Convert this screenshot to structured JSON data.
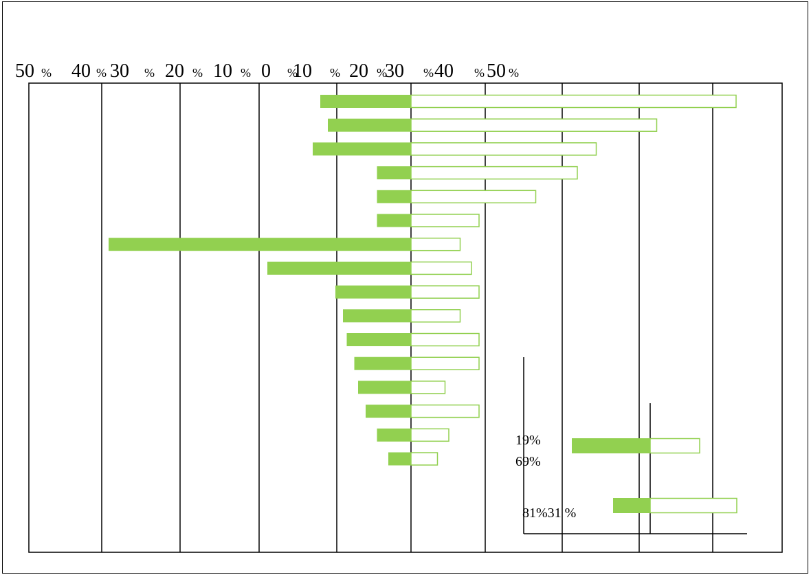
{
  "chart_data": {
    "type": "bar",
    "orientation": "horizontal",
    "stacking": "diverging",
    "grid": true,
    "legend": "none",
    "title": "",
    "xlabel": "",
    "ylabel": "",
    "xlim": [
      -50,
      50
    ],
    "x_tick_values": [
      -50,
      -40,
      -30,
      -20,
      -10,
      0,
      10,
      20,
      30,
      40,
      50
    ],
    "tick_number_labels": [
      "50",
      "40",
      "30",
      "20",
      "10",
      "0",
      "10",
      "20",
      "30",
      "40",
      "50"
    ],
    "tick_unit_label": "%",
    "colors": {
      "negative_fill": "#92D050",
      "positive_outline": "#92D050",
      "positive_fill": "#FFFFFF",
      "grid": "#000000"
    },
    "series": [
      {
        "values": [
          -12,
          -11,
          -13,
          -4.5,
          -4.5,
          -4.5,
          -40,
          -19,
          -10,
          -9,
          -8.5,
          -7.5,
          -7,
          -6,
          -4.5,
          -3
        ]
      },
      {
        "values": [
          43,
          32.5,
          24.5,
          22,
          16.5,
          9,
          6.5,
          8,
          9,
          6.5,
          9,
          9,
          4.5,
          9,
          5,
          3.5
        ]
      }
    ],
    "inset": {
      "labels": [
        "19%",
        "69%",
        "81%31 %"
      ],
      "bars": [
        {
          "negative": -19,
          "positive": 12
        },
        {
          "negative": -9,
          "positive": 21
        }
      ]
    }
  }
}
